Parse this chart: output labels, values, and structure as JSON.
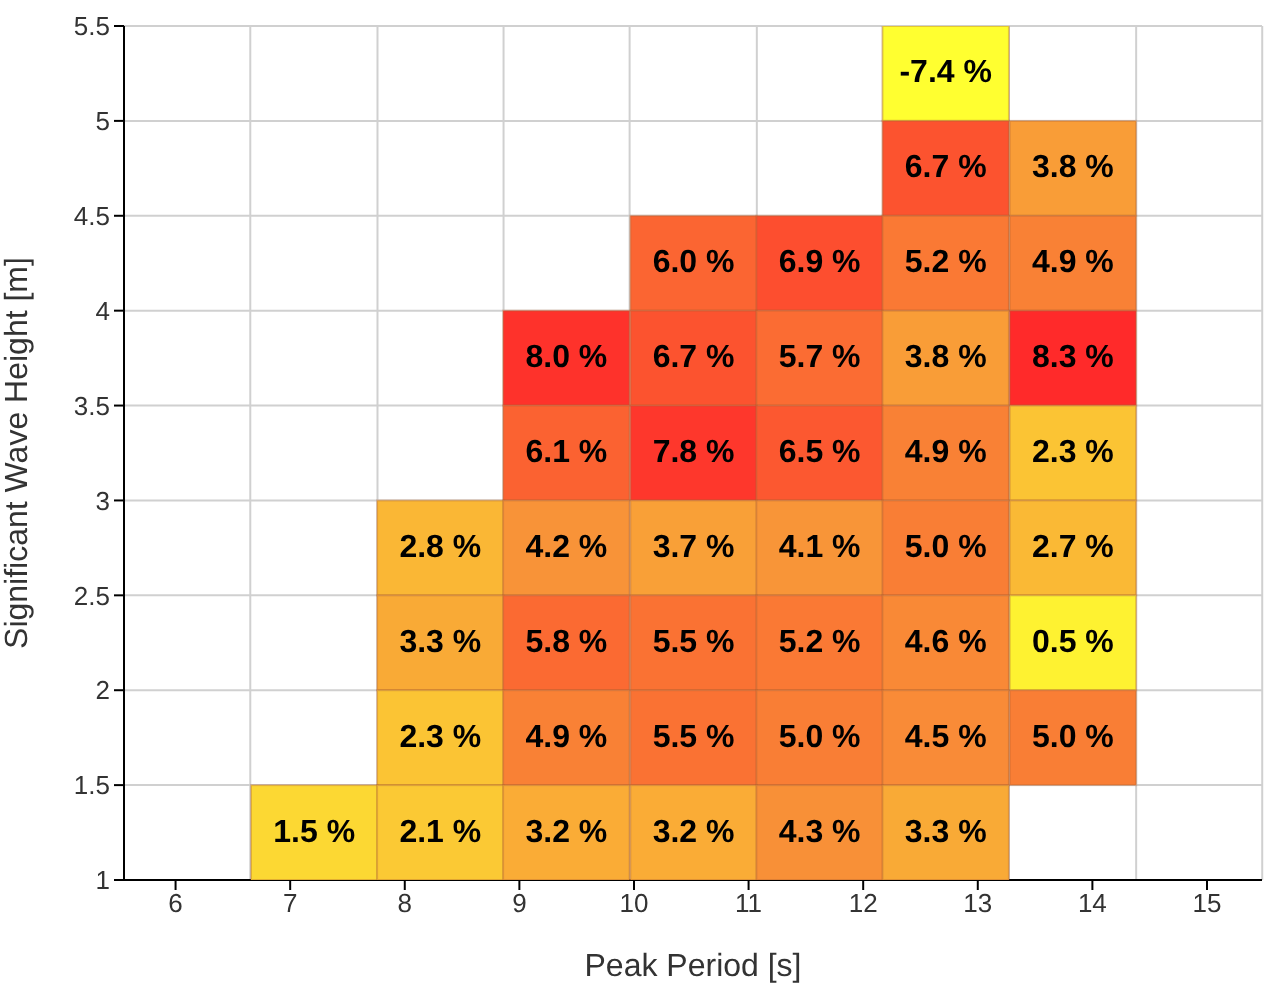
{
  "chart_data": {
    "type": "heatmap",
    "xlabel": "Peak Period [s]",
    "ylabel": "Significant Wave Height [m]",
    "x": [
      6.1,
      7.21,
      8.31,
      9.41,
      10.52,
      11.62,
      12.72,
      13.83,
      14.93
    ],
    "y": [
      5.25,
      4.75,
      4.25,
      3.75,
      3.25,
      2.75,
      2.25,
      1.75,
      1.25
    ],
    "xlim": [
      5.55,
      15.48
    ],
    "xticks": [
      6,
      7,
      8,
      9,
      10,
      11,
      12,
      13,
      14,
      15
    ],
    "ylim": [
      1,
      5.5
    ],
    "yticks": [
      1,
      1.5,
      2,
      2.5,
      3,
      3.5,
      4,
      4.5,
      5,
      5.5
    ],
    "grid": true,
    "cells": [
      [
        null,
        null,
        null,
        null,
        null,
        null,
        -7.4,
        null,
        null
      ],
      [
        null,
        null,
        null,
        null,
        null,
        null,
        6.7,
        3.8,
        null
      ],
      [
        null,
        null,
        null,
        null,
        6.0,
        6.9,
        5.2,
        4.9,
        null
      ],
      [
        null,
        null,
        null,
        8.0,
        6.7,
        5.7,
        3.8,
        8.3,
        null
      ],
      [
        null,
        null,
        null,
        6.1,
        7.8,
        6.5,
        4.9,
        2.3,
        null
      ],
      [
        null,
        null,
        2.8,
        4.2,
        3.7,
        4.1,
        5.0,
        2.7,
        null
      ],
      [
        null,
        null,
        3.3,
        5.8,
        5.5,
        5.2,
        4.6,
        0.5,
        null
      ],
      [
        null,
        null,
        2.3,
        4.9,
        5.5,
        5.0,
        4.5,
        5.0,
        null
      ],
      [
        null,
        1.5,
        2.1,
        3.2,
        3.2,
        4.3,
        3.3,
        null,
        null
      ]
    ],
    "cell_labels": [
      [
        null,
        null,
        null,
        null,
        null,
        null,
        "-7.4 %",
        null,
        null
      ],
      [
        null,
        null,
        null,
        null,
        null,
        null,
        "6.7 %",
        "3.8 %",
        null
      ],
      [
        null,
        null,
        null,
        null,
        "6.0 %",
        "6.9 %",
        "5.2 %",
        "4.9 %",
        null
      ],
      [
        null,
        null,
        null,
        "8.0 %",
        "6.7 %",
        "5.7 %",
        "3.8 %",
        "8.3 %",
        null
      ],
      [
        null,
        null,
        null,
        "6.1 %",
        "7.8 %",
        "6.5 %",
        "4.9 %",
        "2.3 %",
        null
      ],
      [
        null,
        null,
        "2.8 %",
        "4.2 %",
        "3.7 %",
        "4.1 %",
        "5.0 %",
        "2.7 %",
        null
      ],
      [
        null,
        null,
        "3.3 %",
        "5.8 %",
        "5.5 %",
        "5.2 %",
        "4.6 %",
        "0.5 %",
        null
      ],
      [
        null,
        null,
        "2.3 %",
        "4.9 %",
        "5.5 %",
        "5.0 %",
        "4.5 %",
        "5.0 %",
        null
      ],
      [
        null,
        "1.5 %",
        "2.1 %",
        "3.2 %",
        "3.2 %",
        "4.3 %",
        "3.3 %",
        null,
        null
      ]
    ]
  }
}
